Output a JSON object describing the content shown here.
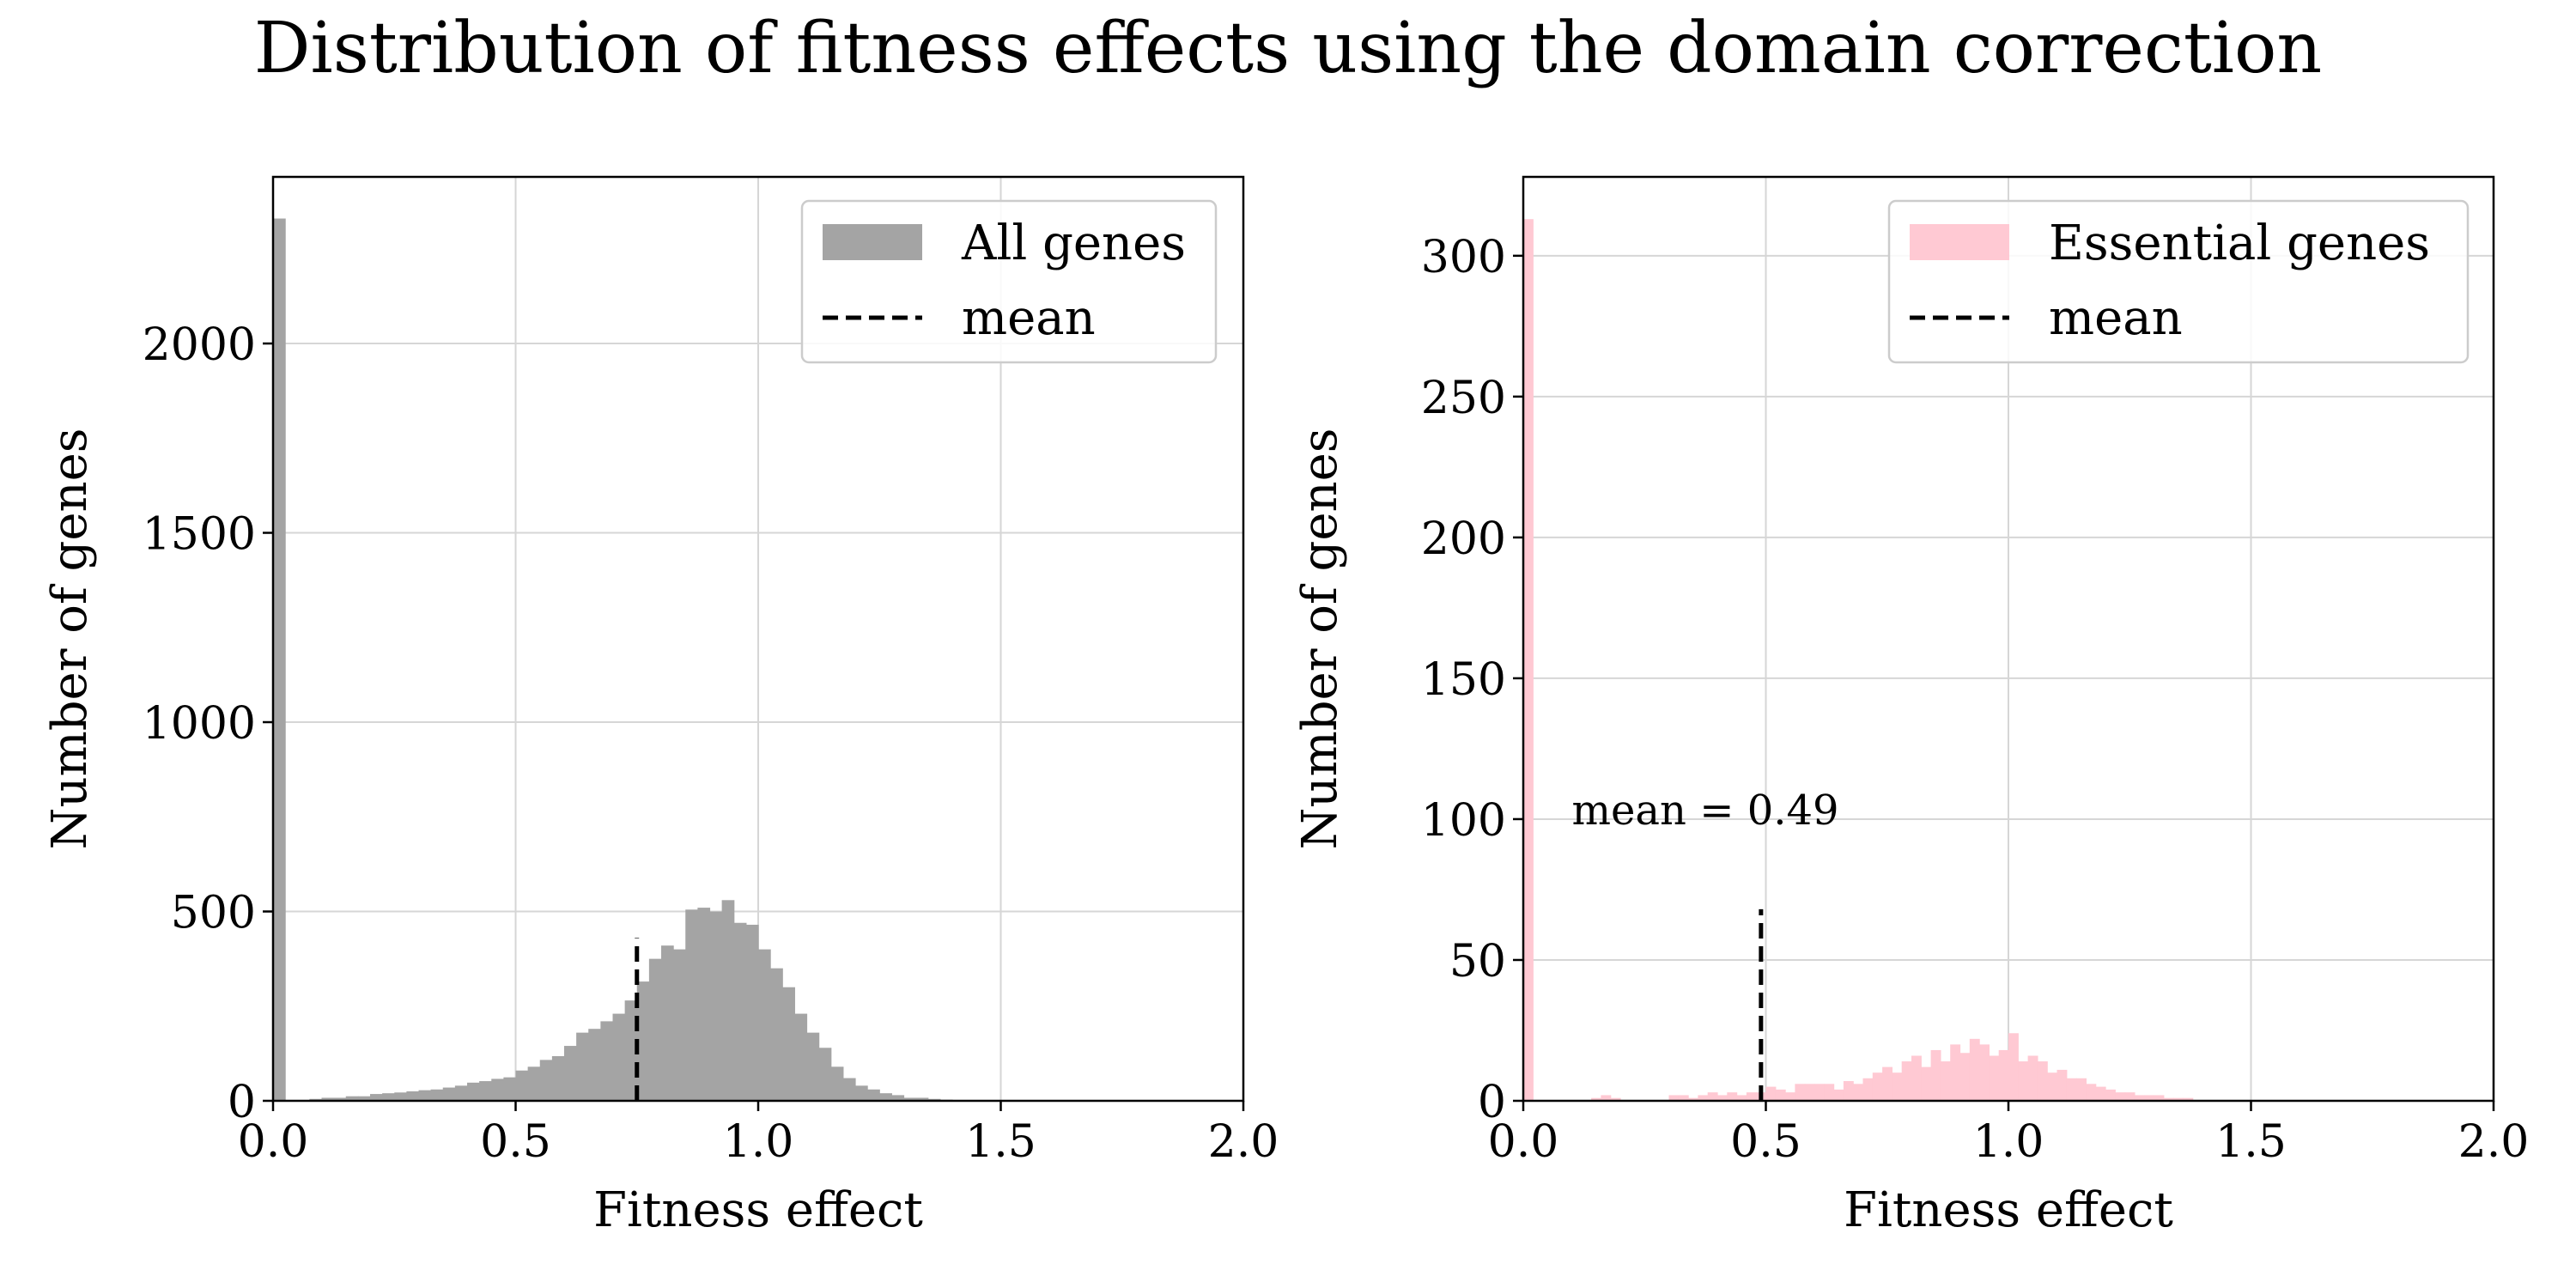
{
  "figure": {
    "title": "Distribution of fitness effects using the domain correction"
  },
  "chart_data": [
    {
      "type": "histogram",
      "xlabel": "Fitness effect",
      "ylabel": "Number of genes",
      "xlim": [
        0.0,
        2.0
      ],
      "ylim": [
        0,
        2440
      ],
      "xticks": [
        0.0,
        0.5,
        1.0,
        1.5,
        2.0
      ],
      "xtick_labels": [
        "0.0",
        "0.5",
        "1.0",
        "1.5",
        "2.0"
      ],
      "yticks": [
        0,
        500,
        1000,
        1500,
        2000
      ],
      "ytick_labels": [
        "0",
        "500",
        "1000",
        "1500",
        "2000"
      ],
      "grid": true,
      "legend_position": "top-right",
      "color": "#a4a4a4",
      "bin_width": 0.025,
      "bin_start": 0.0,
      "counts": [
        2330,
        0,
        2,
        5,
        8,
        8,
        12,
        12,
        18,
        20,
        22,
        25,
        28,
        30,
        35,
        40,
        48,
        52,
        58,
        62,
        80,
        90,
        108,
        118,
        145,
        180,
        190,
        210,
        230,
        265,
        315,
        375,
        410,
        400,
        505,
        510,
        500,
        530,
        470,
        465,
        400,
        350,
        300,
        230,
        180,
        140,
        90,
        60,
        40,
        30,
        20,
        15,
        8,
        8,
        5,
        3,
        2,
        1,
        1,
        0
      ],
      "series_label": "All genes",
      "mean_value": 0.75,
      "mean_line_top": 430,
      "mean_label": "mean"
    },
    {
      "type": "histogram",
      "xlabel": "Fitness effect",
      "ylabel": "Number of genes",
      "xlim": [
        0.0,
        2.0
      ],
      "ylim": [
        0,
        328
      ],
      "xticks": [
        0.0,
        0.5,
        1.0,
        1.5,
        2.0
      ],
      "xtick_labels": [
        "0.0",
        "0.5",
        "1.0",
        "1.5",
        "2.0"
      ],
      "yticks": [
        0,
        50,
        100,
        150,
        200,
        250,
        300
      ],
      "ytick_labels": [
        "0",
        "50",
        "100",
        "150",
        "200",
        "250",
        "300"
      ],
      "grid": true,
      "legend_position": "top-right",
      "color": "#ffc9d3",
      "bin_width": 0.02,
      "bin_start": 0.0,
      "counts": [
        313,
        0,
        0,
        0,
        0,
        0,
        0,
        1,
        2,
        1,
        0,
        0,
        0,
        0,
        0,
        2,
        2,
        1,
        2,
        3,
        2,
        3,
        2,
        3,
        3,
        5,
        4,
        3,
        6,
        6,
        6,
        6,
        4,
        7,
        6,
        8,
        10,
        12,
        10,
        14,
        16,
        12,
        18,
        14,
        20,
        17,
        22,
        20,
        16,
        18,
        24,
        14,
        16,
        14,
        10,
        11,
        8,
        8,
        6,
        5,
        4,
        3,
        3,
        2,
        2,
        2,
        1,
        1,
        1,
        0
      ],
      "series_label": "Essential genes",
      "mean_value": 0.49,
      "mean_line_top": 68,
      "mean_label": "mean",
      "annotation": "mean = 0.49",
      "annotation_at": [
        0.1,
        103
      ]
    }
  ]
}
